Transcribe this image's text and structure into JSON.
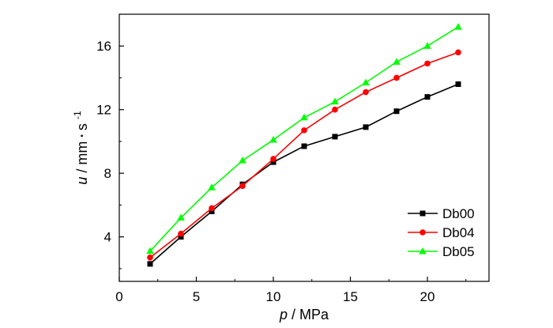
{
  "chart_data": {
    "type": "line",
    "xlabel": {
      "symbol": "p",
      "unit": "/ MPa"
    },
    "ylabel": {
      "symbol": "u",
      "unit": "/ mm",
      "dot": "•",
      "unit2": "s",
      "exponent": "-1"
    },
    "xlim": [
      0,
      24
    ],
    "ylim": [
      1.2,
      18
    ],
    "xticks": [
      "0",
      "5",
      "10",
      "15",
      "20"
    ],
    "xtick_values": [
      0,
      5,
      10,
      15,
      20
    ],
    "yticks": [
      "4",
      "8",
      "12",
      "16"
    ],
    "ytick_values": [
      4,
      8,
      12,
      16
    ],
    "grid": false,
    "legend_position": "bottom-right",
    "x": [
      2,
      4,
      6,
      8,
      10,
      12,
      14,
      16,
      18,
      20,
      22
    ],
    "series": [
      {
        "name": "Db00",
        "color": "#000000",
        "marker": "square",
        "values": [
          2.3,
          4.0,
          5.6,
          7.3,
          8.7,
          9.7,
          10.3,
          10.9,
          11.9,
          12.8,
          13.6
        ]
      },
      {
        "name": "Db04",
        "color": "#ff0000",
        "marker": "circle",
        "values": [
          2.7,
          4.2,
          5.8,
          7.2,
          8.9,
          10.7,
          12.0,
          13.1,
          14.0,
          14.9,
          15.6
        ]
      },
      {
        "name": "Db05",
        "color": "#00ff00",
        "marker": "triangle",
        "values": [
          3.1,
          5.2,
          7.1,
          8.8,
          10.1,
          11.5,
          12.5,
          13.7,
          15.0,
          16.0,
          17.2
        ]
      }
    ]
  }
}
